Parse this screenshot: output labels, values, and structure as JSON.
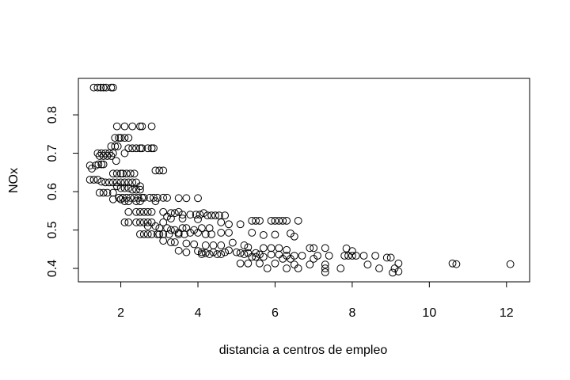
{
  "chart_data": {
    "type": "scatter",
    "title": "",
    "xlabel": "distancia a centros de empleo",
    "ylabel": "NOx",
    "xlim": [
      0.9,
      12.6
    ],
    "ylim": [
      0.365,
      0.895
    ],
    "xticks": [
      2,
      4,
      6,
      8,
      10,
      12
    ],
    "yticks": [
      0.4,
      0.5,
      0.6,
      0.7,
      0.8
    ],
    "grid": false,
    "legend": "none",
    "points": [
      [
        1.3,
        0.871
      ],
      [
        1.4,
        0.871
      ],
      [
        1.48,
        0.871
      ],
      [
        1.55,
        0.871
      ],
      [
        1.62,
        0.871
      ],
      [
        1.75,
        0.871
      ],
      [
        1.8,
        0.871
      ],
      [
        1.9,
        0.77
      ],
      [
        2.1,
        0.77
      ],
      [
        2.3,
        0.77
      ],
      [
        2.5,
        0.77
      ],
      [
        2.55,
        0.77
      ],
      [
        2.8,
        0.77
      ],
      [
        1.85,
        0.74
      ],
      [
        1.95,
        0.74
      ],
      [
        2.0,
        0.74
      ],
      [
        2.1,
        0.74
      ],
      [
        2.2,
        0.74
      ],
      [
        1.75,
        0.718
      ],
      [
        1.85,
        0.718
      ],
      [
        1.92,
        0.718
      ],
      [
        2.2,
        0.713
      ],
      [
        2.3,
        0.713
      ],
      [
        2.4,
        0.713
      ],
      [
        2.5,
        0.713
      ],
      [
        2.55,
        0.713
      ],
      [
        2.7,
        0.713
      ],
      [
        2.8,
        0.713
      ],
      [
        2.85,
        0.713
      ],
      [
        1.4,
        0.7
      ],
      [
        1.45,
        0.693
      ],
      [
        1.5,
        0.7
      ],
      [
        1.55,
        0.693
      ],
      [
        1.6,
        0.7
      ],
      [
        1.65,
        0.693
      ],
      [
        1.7,
        0.7
      ],
      [
        1.75,
        0.693
      ],
      [
        1.8,
        0.7
      ],
      [
        1.88,
        0.68
      ],
      [
        2.1,
        0.7
      ],
      [
        1.2,
        0.668
      ],
      [
        1.25,
        0.66
      ],
      [
        1.35,
        0.668
      ],
      [
        1.42,
        0.671
      ],
      [
        1.5,
        0.671
      ],
      [
        1.55,
        0.671
      ],
      [
        1.8,
        0.647
      ],
      [
        1.9,
        0.647
      ],
      [
        2.0,
        0.647
      ],
      [
        2.05,
        0.647
      ],
      [
        2.15,
        0.647
      ],
      [
        2.25,
        0.647
      ],
      [
        2.35,
        0.647
      ],
      [
        2.9,
        0.655
      ],
      [
        3.0,
        0.655
      ],
      [
        3.1,
        0.655
      ],
      [
        1.2,
        0.631
      ],
      [
        1.3,
        0.631
      ],
      [
        1.4,
        0.631
      ],
      [
        1.5,
        0.626
      ],
      [
        1.6,
        0.624
      ],
      [
        1.7,
        0.624
      ],
      [
        1.8,
        0.624
      ],
      [
        1.9,
        0.624
      ],
      [
        2.0,
        0.624
      ],
      [
        2.1,
        0.624
      ],
      [
        2.2,
        0.624
      ],
      [
        2.3,
        0.624
      ],
      [
        2.4,
        0.624
      ],
      [
        2.5,
        0.614
      ],
      [
        1.9,
        0.614
      ],
      [
        2.0,
        0.609
      ],
      [
        2.1,
        0.609
      ],
      [
        2.2,
        0.609
      ],
      [
        2.3,
        0.605
      ],
      [
        2.4,
        0.605
      ],
      [
        2.5,
        0.605
      ],
      [
        1.45,
        0.597
      ],
      [
        1.55,
        0.597
      ],
      [
        1.65,
        0.597
      ],
      [
        1.8,
        0.597
      ],
      [
        1.95,
        0.584
      ],
      [
        2.05,
        0.584
      ],
      [
        2.15,
        0.584
      ],
      [
        2.25,
        0.584
      ],
      [
        2.35,
        0.584
      ],
      [
        2.45,
        0.584
      ],
      [
        2.55,
        0.584
      ],
      [
        2.6,
        0.584
      ],
      [
        2.75,
        0.584
      ],
      [
        2.85,
        0.584
      ],
      [
        2.95,
        0.584
      ],
      [
        3.1,
        0.584
      ],
      [
        3.2,
        0.584
      ],
      [
        1.8,
        0.58
      ],
      [
        2.0,
        0.58
      ],
      [
        2.1,
        0.575
      ],
      [
        2.2,
        0.575
      ],
      [
        2.4,
        0.575
      ],
      [
        2.5,
        0.575
      ],
      [
        2.9,
        0.575
      ],
      [
        3.5,
        0.583
      ],
      [
        3.7,
        0.583
      ],
      [
        4.0,
        0.583
      ],
      [
        2.2,
        0.547
      ],
      [
        2.4,
        0.547
      ],
      [
        2.5,
        0.547
      ],
      [
        2.6,
        0.547
      ],
      [
        2.7,
        0.547
      ],
      [
        2.8,
        0.547
      ],
      [
        3.1,
        0.547
      ],
      [
        3.3,
        0.544
      ],
      [
        3.4,
        0.544
      ],
      [
        3.5,
        0.547
      ],
      [
        3.6,
        0.54
      ],
      [
        3.8,
        0.54
      ],
      [
        3.95,
        0.54
      ],
      [
        4.05,
        0.54
      ],
      [
        4.15,
        0.544
      ],
      [
        4.25,
        0.538
      ],
      [
        4.35,
        0.538
      ],
      [
        4.45,
        0.538
      ],
      [
        4.55,
        0.538
      ],
      [
        4.7,
        0.538
      ],
      [
        3.2,
        0.535
      ],
      [
        3.3,
        0.53
      ],
      [
        3.6,
        0.53
      ],
      [
        4.0,
        0.528
      ],
      [
        2.1,
        0.52
      ],
      [
        2.2,
        0.52
      ],
      [
        2.4,
        0.52
      ],
      [
        2.5,
        0.52
      ],
      [
        2.6,
        0.52
      ],
      [
        2.7,
        0.52
      ],
      [
        2.8,
        0.52
      ],
      [
        3.1,
        0.52
      ],
      [
        5.4,
        0.524
      ],
      [
        5.5,
        0.524
      ],
      [
        5.6,
        0.524
      ],
      [
        5.9,
        0.524
      ],
      [
        6.0,
        0.524
      ],
      [
        6.1,
        0.524
      ],
      [
        6.2,
        0.524
      ],
      [
        6.3,
        0.524
      ],
      [
        6.6,
        0.524
      ],
      [
        4.6,
        0.52
      ],
      [
        4.8,
        0.515
      ],
      [
        5.1,
        0.515
      ],
      [
        2.7,
        0.51
      ],
      [
        2.9,
        0.51
      ],
      [
        3.0,
        0.505
      ],
      [
        3.2,
        0.505
      ],
      [
        3.3,
        0.5
      ],
      [
        3.4,
        0.5
      ],
      [
        3.6,
        0.505
      ],
      [
        3.7,
        0.505
      ],
      [
        3.9,
        0.5
      ],
      [
        4.1,
        0.505
      ],
      [
        4.3,
        0.505
      ],
      [
        3.5,
        0.493
      ],
      [
        3.8,
        0.493
      ],
      [
        4.0,
        0.493
      ],
      [
        2.5,
        0.489
      ],
      [
        2.6,
        0.489
      ],
      [
        2.7,
        0.489
      ],
      [
        2.8,
        0.489
      ],
      [
        2.95,
        0.489
      ],
      [
        3.0,
        0.489
      ],
      [
        3.1,
        0.489
      ],
      [
        3.25,
        0.489
      ],
      [
        3.5,
        0.489
      ],
      [
        3.65,
        0.489
      ],
      [
        4.2,
        0.489
      ],
      [
        4.35,
        0.489
      ],
      [
        4.6,
        0.493
      ],
      [
        4.8,
        0.493
      ],
      [
        5.4,
        0.493
      ],
      [
        5.7,
        0.487
      ],
      [
        6.0,
        0.488
      ],
      [
        6.4,
        0.491
      ],
      [
        6.5,
        0.483
      ],
      [
        3.1,
        0.472
      ],
      [
        3.3,
        0.468
      ],
      [
        3.4,
        0.468
      ],
      [
        3.7,
        0.465
      ],
      [
        3.9,
        0.463
      ],
      [
        4.2,
        0.46
      ],
      [
        4.4,
        0.46
      ],
      [
        4.6,
        0.46
      ],
      [
        4.9,
        0.467
      ],
      [
        5.2,
        0.46
      ],
      [
        5.3,
        0.455
      ],
      [
        5.7,
        0.453
      ],
      [
        5.9,
        0.453
      ],
      [
        6.1,
        0.453
      ],
      [
        6.3,
        0.448
      ],
      [
        6.9,
        0.453
      ],
      [
        7.0,
        0.453
      ],
      [
        7.3,
        0.453
      ],
      [
        7.85,
        0.452
      ],
      [
        3.5,
        0.446
      ],
      [
        3.7,
        0.442
      ],
      [
        4.0,
        0.445
      ],
      [
        4.1,
        0.442
      ],
      [
        4.2,
        0.44
      ],
      [
        4.4,
        0.442
      ],
      [
        4.7,
        0.442
      ],
      [
        4.8,
        0.447
      ],
      [
        5.0,
        0.442
      ],
      [
        5.1,
        0.44
      ],
      [
        5.3,
        0.44
      ],
      [
        5.5,
        0.44
      ],
      [
        5.6,
        0.436
      ],
      [
        5.9,
        0.436
      ],
      [
        6.1,
        0.436
      ],
      [
        6.3,
        0.433
      ],
      [
        6.5,
        0.433
      ],
      [
        6.7,
        0.433
      ],
      [
        7.1,
        0.433
      ],
      [
        7.4,
        0.433
      ],
      [
        7.8,
        0.433
      ],
      [
        7.9,
        0.433
      ],
      [
        8.0,
        0.433
      ],
      [
        8.1,
        0.433
      ],
      [
        8.3,
        0.433
      ],
      [
        8.6,
        0.433
      ],
      [
        4.1,
        0.437
      ],
      [
        4.3,
        0.437
      ],
      [
        4.5,
        0.437
      ],
      [
        4.6,
        0.437
      ],
      [
        5.2,
        0.437
      ],
      [
        5.4,
        0.43
      ],
      [
        5.5,
        0.43
      ],
      [
        5.7,
        0.43
      ],
      [
        6.2,
        0.425
      ],
      [
        6.4,
        0.425
      ],
      [
        7.0,
        0.425
      ],
      [
        8.0,
        0.445
      ],
      [
        8.9,
        0.428
      ],
      [
        9.0,
        0.428
      ],
      [
        5.1,
        0.413
      ],
      [
        5.3,
        0.413
      ],
      [
        5.6,
        0.413
      ],
      [
        6.0,
        0.413
      ],
      [
        6.5,
        0.41
      ],
      [
        6.9,
        0.41
      ],
      [
        7.3,
        0.41
      ],
      [
        8.4,
        0.41
      ],
      [
        9.2,
        0.413
      ],
      [
        10.6,
        0.413
      ],
      [
        10.7,
        0.411
      ],
      [
        12.1,
        0.411
      ],
      [
        5.8,
        0.4
      ],
      [
        6.3,
        0.4
      ],
      [
        6.6,
        0.4
      ],
      [
        7.3,
        0.4
      ],
      [
        7.7,
        0.4
      ],
      [
        8.7,
        0.4
      ],
      [
        9.1,
        0.4
      ],
      [
        7.3,
        0.39
      ],
      [
        9.2,
        0.392
      ],
      [
        9.05,
        0.389
      ]
    ]
  }
}
